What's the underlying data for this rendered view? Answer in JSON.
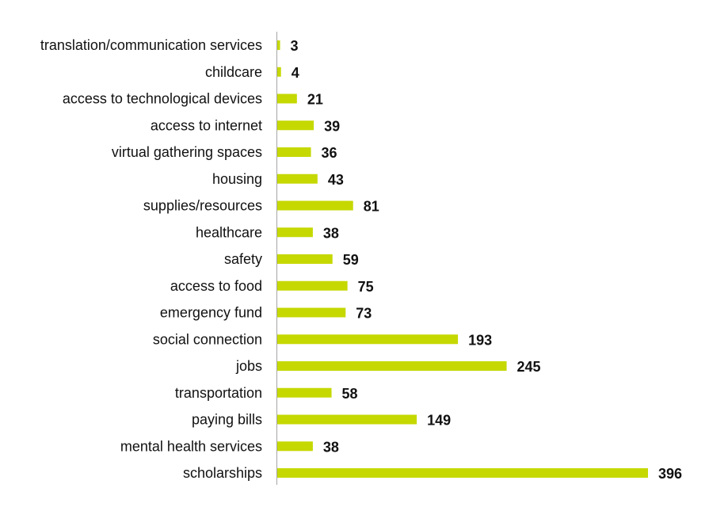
{
  "chart_data": {
    "type": "bar",
    "orientation": "horizontal",
    "title": "",
    "xlabel": "",
    "ylabel": "",
    "categories": [
      "translation/communication services",
      "childcare",
      "access to technological devices",
      "access to internet",
      "virtual gathering spaces",
      "housing",
      "supplies/resources",
      "healthcare",
      "safety",
      "access to food",
      "emergency fund",
      "social connection",
      "jobs",
      "transportation",
      "paying bills",
      "mental health services",
      "scholarships"
    ],
    "values": [
      3,
      4,
      21,
      39,
      36,
      43,
      81,
      38,
      59,
      75,
      73,
      193,
      245,
      58,
      149,
      38,
      396
    ],
    "data_labels": [
      "3",
      "4",
      "21",
      "39",
      "36",
      "43",
      "81",
      "38",
      "59",
      "75",
      "73",
      "193",
      "245",
      "58",
      "149",
      "38",
      "396"
    ],
    "xlim": [
      0,
      400
    ],
    "grid": false,
    "legend": "none",
    "bar_color": "#c5d800",
    "axis_color": "#a6a6a6"
  }
}
